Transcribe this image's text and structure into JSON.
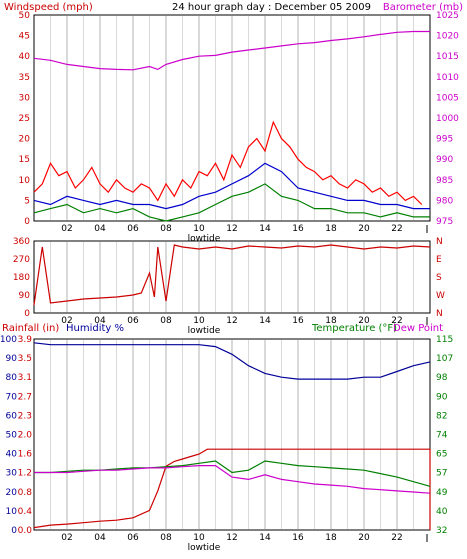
{
  "chart_data": [
    {
      "type": "line",
      "title": "24 hour graph day : December 05 2009",
      "left_axis_label": "Windspeed (mph)",
      "right_axis_label": "Barometer (mb)",
      "left_ticks": [
        "0",
        "5",
        "10",
        "15",
        "20",
        "25",
        "30",
        "35",
        "40",
        "45",
        "50"
      ],
      "right_ticks": [
        "975",
        "980",
        "985",
        "990",
        "995",
        "1000",
        "1005",
        "1010",
        "1015",
        "1020",
        "1025"
      ],
      "x_ticks": [
        "02",
        "04",
        "06",
        "08",
        "10",
        "12",
        "14",
        "16",
        "18",
        "20",
        "22"
      ],
      "x_marker_label": "lowtide",
      "x_marker_hour": 10.3,
      "xlim": [
        0,
        24
      ],
      "ylim_left": [
        0,
        50
      ],
      "ylim_right": [
        975,
        1025
      ],
      "grid": "vertical",
      "series": [
        {
          "name": "",
          "axis": "right",
          "color": "#cc00cc",
          "x": [
            0,
            1,
            2,
            3,
            4,
            5,
            6,
            7,
            7.5,
            8,
            9,
            10,
            11,
            12,
            13,
            14,
            15,
            16,
            17,
            18,
            19,
            20,
            21,
            22,
            23,
            24
          ],
          "y": [
            1014.5,
            1014,
            1013,
            1012.5,
            1012,
            1011.8,
            1011.7,
            1012.5,
            1011.8,
            1013,
            1014.2,
            1015,
            1015.2,
            1016,
            1016.5,
            1017,
            1017.5,
            1018,
            1018.3,
            1018.8,
            1019.2,
            1019.7,
            1020.3,
            1020.8,
            1021,
            1021
          ]
        },
        {
          "name": "",
          "axis": "left",
          "color": "#ff0000",
          "x": [
            0,
            0.5,
            1,
            1.5,
            2,
            2.5,
            3,
            3.5,
            4,
            4.5,
            5,
            5.5,
            6,
            6.5,
            7,
            7.5,
            8,
            8.5,
            9,
            9.5,
            10,
            10.5,
            11,
            11.5,
            12,
            12.5,
            13,
            13.5,
            14,
            14.5,
            15,
            15.5,
            16,
            16.5,
            17,
            17.5,
            18,
            18.5,
            19,
            19.5,
            20,
            20.5,
            21,
            21.5,
            22,
            22.5,
            23,
            23.5
          ],
          "y": [
            7,
            9,
            14,
            11,
            12,
            8,
            10,
            13,
            9,
            7,
            10,
            8,
            7,
            9,
            8,
            5,
            9,
            6,
            10,
            8,
            12,
            11,
            14,
            10,
            16,
            13,
            18,
            20,
            17,
            24,
            20,
            18,
            15,
            13,
            12,
            10,
            11,
            9,
            8,
            10,
            9,
            7,
            8,
            6,
            7,
            5,
            6,
            4
          ]
        },
        {
          "name": "",
          "axis": "left",
          "color": "#0000cc",
          "x": [
            0,
            1,
            2,
            3,
            4,
            5,
            6,
            7,
            8,
            9,
            10,
            11,
            12,
            13,
            14,
            15,
            16,
            17,
            18,
            19,
            20,
            21,
            22,
            23,
            24
          ],
          "y": [
            5,
            4,
            6,
            5,
            4,
            5,
            4,
            4,
            3,
            4,
            6,
            7,
            9,
            11,
            14,
            12,
            8,
            7,
            6,
            5,
            5,
            4,
            4,
            3,
            3
          ]
        },
        {
          "name": "",
          "axis": "left",
          "color": "#008000",
          "x": [
            0,
            1,
            2,
            3,
            4,
            5,
            6,
            7,
            8,
            9,
            10,
            11,
            12,
            13,
            14,
            15,
            16,
            17,
            18,
            19,
            20,
            21,
            22,
            23,
            24
          ],
          "y": [
            2,
            3,
            4,
            2,
            3,
            2,
            3,
            1,
            0,
            1,
            2,
            4,
            6,
            7,
            9,
            6,
            5,
            3,
            3,
            2,
            2,
            1,
            2,
            1,
            1
          ]
        }
      ]
    },
    {
      "type": "line",
      "title": "",
      "left_ticks": [
        "0",
        "90",
        "180",
        "270",
        "360"
      ],
      "right_ticks": [
        "N",
        "W",
        "S",
        "E",
        "N"
      ],
      "x_ticks": [
        "02",
        "04",
        "06",
        "08",
        "10",
        "12",
        "14",
        "16",
        "18",
        "20",
        "22"
      ],
      "x_marker_label": "lowtide",
      "xlim": [
        0,
        24
      ],
      "ylim_left": [
        0,
        360
      ],
      "grid": "vertical",
      "series": [
        {
          "name": "",
          "axis": "left",
          "color": "#cc0000",
          "x": [
            0,
            0.5,
            1,
            2,
            3,
            4,
            5,
            6,
            6.5,
            7,
            7.3,
            7.5,
            8,
            8.5,
            9,
            10,
            11,
            12,
            13,
            14,
            15,
            16,
            17,
            18,
            19,
            20,
            21,
            22,
            23,
            24
          ],
          "y": [
            40,
            330,
            50,
            60,
            70,
            75,
            80,
            90,
            100,
            200,
            80,
            330,
            60,
            340,
            330,
            320,
            330,
            320,
            335,
            330,
            325,
            335,
            330,
            340,
            330,
            320,
            330,
            325,
            335,
            330
          ]
        }
      ]
    },
    {
      "type": "line",
      "title": "",
      "left_axis_label": "Rainfall (in)",
      "left_axis_label_2": "Humidity %",
      "right_axis_label": "Temperature (°F)",
      "right_axis_label_2": "Dew Point",
      "rain_ticks": [
        "0.0",
        "0.4",
        "0.8",
        "1.2",
        "1.6",
        "2.0",
        "2.3",
        "2.7",
        "3.1",
        "3.5",
        "3.9"
      ],
      "humidity_ticks": [
        "0",
        "10",
        "20",
        "30",
        "40",
        "50",
        "60",
        "70",
        "80",
        "90",
        "100"
      ],
      "right_ticks": [
        "32",
        "40",
        "49",
        "57",
        "65",
        "74",
        "82",
        "90",
        "98",
        "107",
        "115"
      ],
      "x_ticks": [
        "02",
        "04",
        "06",
        "08",
        "10",
        "12",
        "14",
        "16",
        "18",
        "20",
        "22"
      ],
      "x_marker_label": "lowtide",
      "xlim": [
        0,
        24
      ],
      "ylim_humidity": [
        0,
        100
      ],
      "ylim_rain": [
        0,
        3.9
      ],
      "ylim_temp": [
        32,
        115
      ],
      "grid": "vertical",
      "series": [
        {
          "name": "",
          "axis": "humidity",
          "color": "#000099",
          "x": [
            0,
            1,
            2,
            3,
            4,
            5,
            6,
            7,
            8,
            9,
            10,
            11,
            12,
            13,
            14,
            15,
            16,
            17,
            18,
            19,
            20,
            21,
            22,
            23,
            24
          ],
          "y": [
            98,
            97,
            97,
            97,
            97,
            97,
            97,
            97,
            97,
            97,
            97,
            96,
            92,
            86,
            82,
            80,
            79,
            79,
            79,
            79,
            80,
            80,
            83,
            86,
            88
          ]
        },
        {
          "name": "",
          "axis": "rain",
          "color": "#cc0000",
          "x": [
            0,
            1,
            2,
            3,
            4,
            5,
            6,
            7,
            7.5,
            8,
            8.5,
            9,
            9.5,
            10,
            10.5,
            11,
            24,
            24
          ],
          "y": [
            0.05,
            0.1,
            0.12,
            0.15,
            0.18,
            0.2,
            0.25,
            0.4,
            0.8,
            1.3,
            1.4,
            1.45,
            1.5,
            1.55,
            1.65,
            1.65,
            1.65,
            0.0
          ]
        },
        {
          "name": "",
          "axis": "temp",
          "color": "#008000",
          "x": [
            0,
            1,
            2,
            3,
            4,
            5,
            6,
            7,
            8,
            9,
            10,
            11,
            12,
            13,
            14,
            15,
            16,
            17,
            18,
            19,
            20,
            21,
            22,
            23,
            24
          ],
          "y": [
            57,
            57,
            57.5,
            58,
            58,
            58.5,
            59,
            59,
            59.5,
            60,
            61,
            62,
            57,
            58,
            62,
            61,
            60,
            59.5,
            59,
            58.5,
            58,
            56.5,
            55,
            53,
            51
          ]
        },
        {
          "name": "",
          "axis": "temp",
          "color": "#cc00cc",
          "x": [
            0,
            1,
            2,
            3,
            4,
            5,
            6,
            7,
            8,
            9,
            10,
            11,
            12,
            13,
            14,
            15,
            16,
            17,
            18,
            19,
            20,
            21,
            22,
            23,
            24
          ],
          "y": [
            57,
            57,
            57,
            57.5,
            58,
            58,
            58.5,
            59,
            59,
            59.5,
            60,
            60,
            55,
            54,
            56,
            54,
            53,
            52,
            51.5,
            51,
            50,
            49.5,
            49,
            48.5,
            48
          ]
        }
      ]
    }
  ]
}
